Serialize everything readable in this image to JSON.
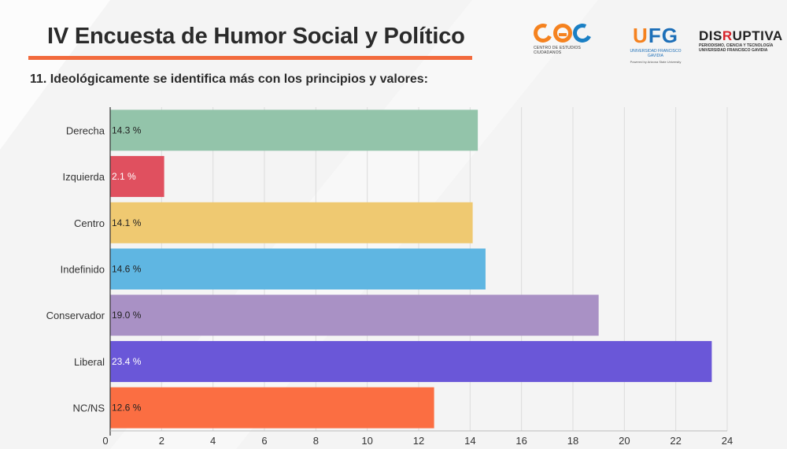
{
  "header": {
    "title": "IV Encuesta de Humor Social y Político",
    "logos": {
      "cec": {
        "sub": "CENTRO DE ESTUDIOS CIUDADANOS"
      },
      "ufg": {
        "main_u": "U",
        "main_fg": "FG",
        "sub": "UNIVERSIDAD FRANCISCO GAVIDIA",
        "sub2": "Powered by Arizona State University"
      },
      "disruptiva": {
        "pre": "DIS",
        "r": "R",
        "post": "UPTIVA",
        "sub1": "PERIODISMO, CIENCIA Y TECNOLOGÍA",
        "sub2": "UNIVERSIDAD FRANCISCO GAVIDIA"
      }
    }
  },
  "question": "11. Ideológicamente se identifica más con los principios y valores:",
  "colors": {
    "accent": "#f26a3d",
    "bars": [
      "#93c4aa",
      "#e0505f",
      "#efc971",
      "#5fb6e2",
      "#a991c5",
      "#6a57d8",
      "#fb6e42"
    ],
    "label_colors": [
      "#222222",
      "#ffffff",
      "#222222",
      "#222222",
      "#222222",
      "#ffffff",
      "#222222"
    ]
  },
  "chart_data": {
    "type": "bar",
    "orientation": "horizontal",
    "categories": [
      "Derecha",
      "Izquierda",
      "Centro",
      "Indefinido",
      "Conservador",
      "Liberal",
      "NC/NS"
    ],
    "values": [
      14.3,
      2.1,
      14.1,
      14.6,
      19.0,
      23.4,
      12.6
    ],
    "data_labels": [
      "14.3 %",
      "2.1 %",
      "14.1 %",
      "14.6 %",
      "19.0 %",
      "23.4 %",
      "12.6 %"
    ],
    "x_ticks": [
      0,
      2,
      4,
      6,
      8,
      10,
      12,
      14,
      16,
      18,
      20,
      22,
      24
    ],
    "xlim": [
      0,
      24
    ],
    "grid": true
  }
}
